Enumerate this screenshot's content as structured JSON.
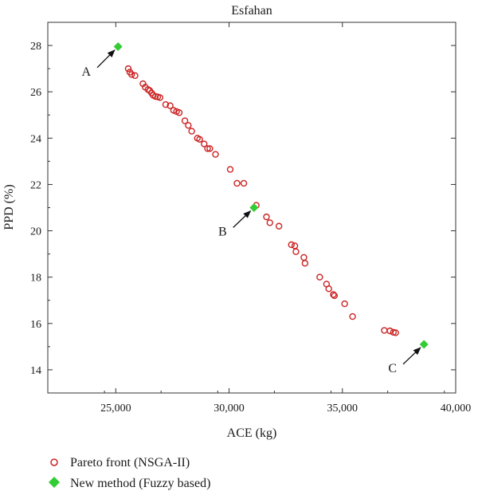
{
  "chart_data": {
    "type": "scatter",
    "title": "Esfahan",
    "xlabel": "ACE (kg)",
    "ylabel": "PPD (%)",
    "xlim": [
      22000,
      40000
    ],
    "ylim": [
      13,
      29
    ],
    "xticks": [
      25000,
      30000,
      35000,
      40000
    ],
    "xtick_labels": [
      "25,000",
      "30,000",
      "35,000",
      "40,000"
    ],
    "yticks": [
      14,
      16,
      18,
      20,
      22,
      24,
      26,
      28
    ],
    "ytick_labels": [
      "14",
      "16",
      "18",
      "20",
      "22",
      "24",
      "26",
      "28"
    ],
    "grid": false,
    "legend_position": "bottom-left-outside",
    "series": [
      {
        "name": "Pareto front (NSGA-II)",
        "marker": "open-circle",
        "color": "#cc2222",
        "points": [
          [
            25550,
            27.0
          ],
          [
            25620,
            26.85
          ],
          [
            25700,
            26.75
          ],
          [
            25850,
            26.7
          ],
          [
            26200,
            26.35
          ],
          [
            26300,
            26.2
          ],
          [
            26420,
            26.1
          ],
          [
            26500,
            26.05
          ],
          [
            26580,
            25.95
          ],
          [
            26650,
            25.85
          ],
          [
            26750,
            25.8
          ],
          [
            26850,
            25.78
          ],
          [
            26950,
            25.75
          ],
          [
            27200,
            25.45
          ],
          [
            27400,
            25.4
          ],
          [
            27550,
            25.2
          ],
          [
            27680,
            25.15
          ],
          [
            27800,
            25.1
          ],
          [
            28050,
            24.75
          ],
          [
            28200,
            24.55
          ],
          [
            28350,
            24.3
          ],
          [
            28600,
            24.0
          ],
          [
            28700,
            23.95
          ],
          [
            28900,
            23.75
          ],
          [
            29050,
            23.55
          ],
          [
            29150,
            23.55
          ],
          [
            29400,
            23.3
          ],
          [
            30050,
            22.65
          ],
          [
            30350,
            22.05
          ],
          [
            30650,
            22.05
          ],
          [
            31200,
            21.1
          ],
          [
            31650,
            20.6
          ],
          [
            31800,
            20.35
          ],
          [
            32200,
            20.2
          ],
          [
            32750,
            19.4
          ],
          [
            32900,
            19.35
          ],
          [
            32950,
            19.1
          ],
          [
            33300,
            18.85
          ],
          [
            33350,
            18.6
          ],
          [
            34000,
            18.0
          ],
          [
            34300,
            17.7
          ],
          [
            34400,
            17.5
          ],
          [
            34600,
            17.25
          ],
          [
            34650,
            17.2
          ],
          [
            35100,
            16.85
          ],
          [
            35450,
            16.3
          ],
          [
            36850,
            15.7
          ],
          [
            37100,
            15.68
          ],
          [
            37250,
            15.62
          ],
          [
            37350,
            15.6
          ]
        ]
      },
      {
        "name": "New method (Fuzzy based)",
        "marker": "filled-diamond",
        "color": "#33cc33",
        "points": [
          [
            25100,
            27.95
          ],
          [
            31100,
            21.0
          ],
          [
            38600,
            15.1
          ]
        ]
      }
    ],
    "annotations": [
      {
        "text": "A",
        "target": [
          25100,
          27.95
        ],
        "text_at": [
          23900,
          26.7
        ]
      },
      {
        "text": "B",
        "target": [
          31100,
          21.0
        ],
        "text_at": [
          29900,
          19.8
        ]
      },
      {
        "text": "C",
        "target": [
          38600,
          15.1
        ],
        "text_at": [
          37400,
          13.9
        ]
      }
    ]
  }
}
